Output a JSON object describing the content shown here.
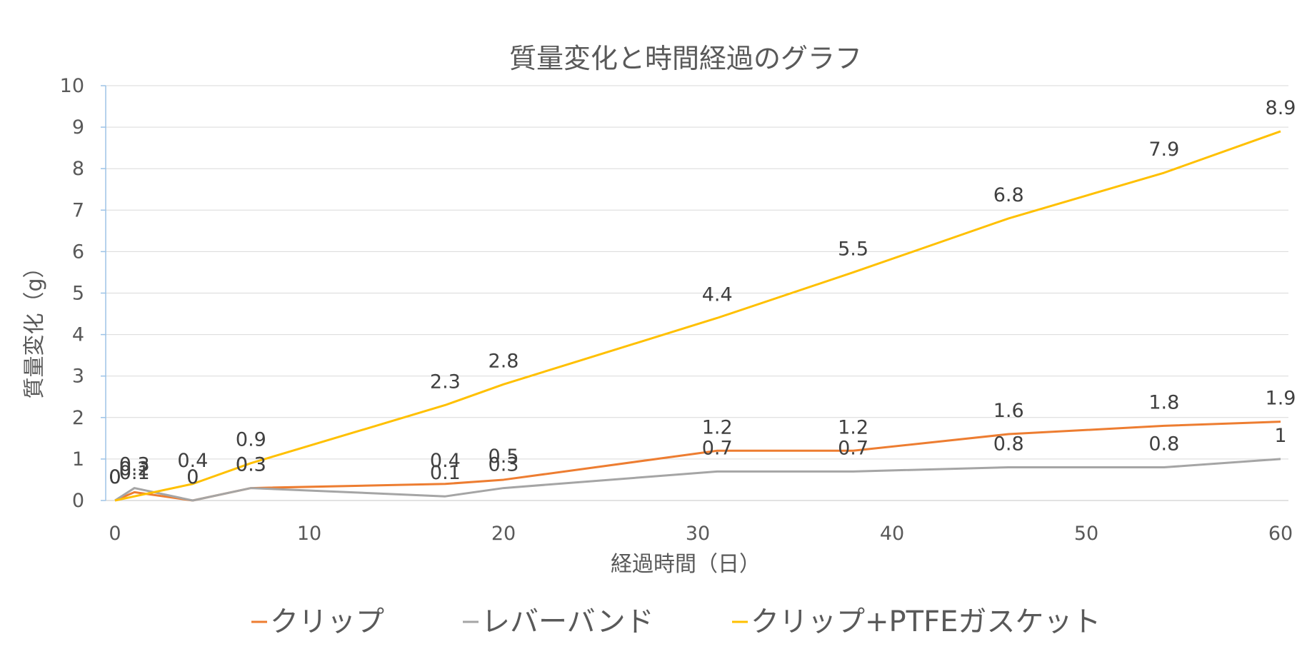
{
  "chart_data": {
    "type": "line",
    "title": "質量変化と時間経過のグラフ",
    "xlabel": "経過時間（日）",
    "ylabel": "質量変化（g）",
    "xlim": [
      0,
      60
    ],
    "ylim": [
      0,
      10
    ],
    "x_ticks": [
      "0",
      "10",
      "20",
      "30",
      "40",
      "50",
      "60"
    ],
    "y_ticks": [
      "0",
      "1",
      "2",
      "3",
      "4",
      "5",
      "6",
      "7",
      "8",
      "9",
      "10"
    ],
    "grid": "horizontal",
    "legend_position": "bottom",
    "series": [
      {
        "name": "クリップ",
        "color": "#ED7D31",
        "x": [
          0,
          1,
          4,
          7,
          17,
          20,
          31,
          38,
          46,
          54,
          60
        ],
        "values": [
          0,
          0.2,
          0,
          0.3,
          0.4,
          0.5,
          1.2,
          1.2,
          1.6,
          1.8,
          1.9
        ],
        "labels": [
          "0",
          "0.2",
          "0",
          "0.3",
          "0.4",
          "0.5",
          "1.2",
          "1.2",
          "1.6",
          "1.8",
          "1.9"
        ]
      },
      {
        "name": "レバーバンド",
        "color": "#A5A5A5",
        "x": [
          0,
          1,
          4,
          7,
          17,
          20,
          31,
          38,
          46,
          54,
          60
        ],
        "values": [
          0,
          0.3,
          0,
          0.3,
          0.1,
          0.3,
          0.7,
          0.7,
          0.8,
          0.8,
          1
        ],
        "labels": [
          "0",
          "0.3",
          "0",
          "0.3",
          "0.1",
          "0.3",
          "0.7",
          "0.7",
          "0.8",
          "0.8",
          "1"
        ]
      },
      {
        "name": "クリップ+PTFEガスケット",
        "color": "#FFC000",
        "x": [
          0,
          1,
          4,
          7,
          17,
          20,
          31,
          38,
          46,
          54,
          60
        ],
        "values": [
          0,
          0.1,
          0.4,
          0.9,
          2.3,
          2.8,
          4.4,
          5.5,
          6.8,
          7.9,
          8.9
        ],
        "labels": [
          "0",
          "0.1",
          "0.4",
          "0.9",
          "2.3",
          "2.8",
          "4.4",
          "5.5",
          "6.8",
          "7.9",
          "8.9"
        ]
      }
    ]
  }
}
